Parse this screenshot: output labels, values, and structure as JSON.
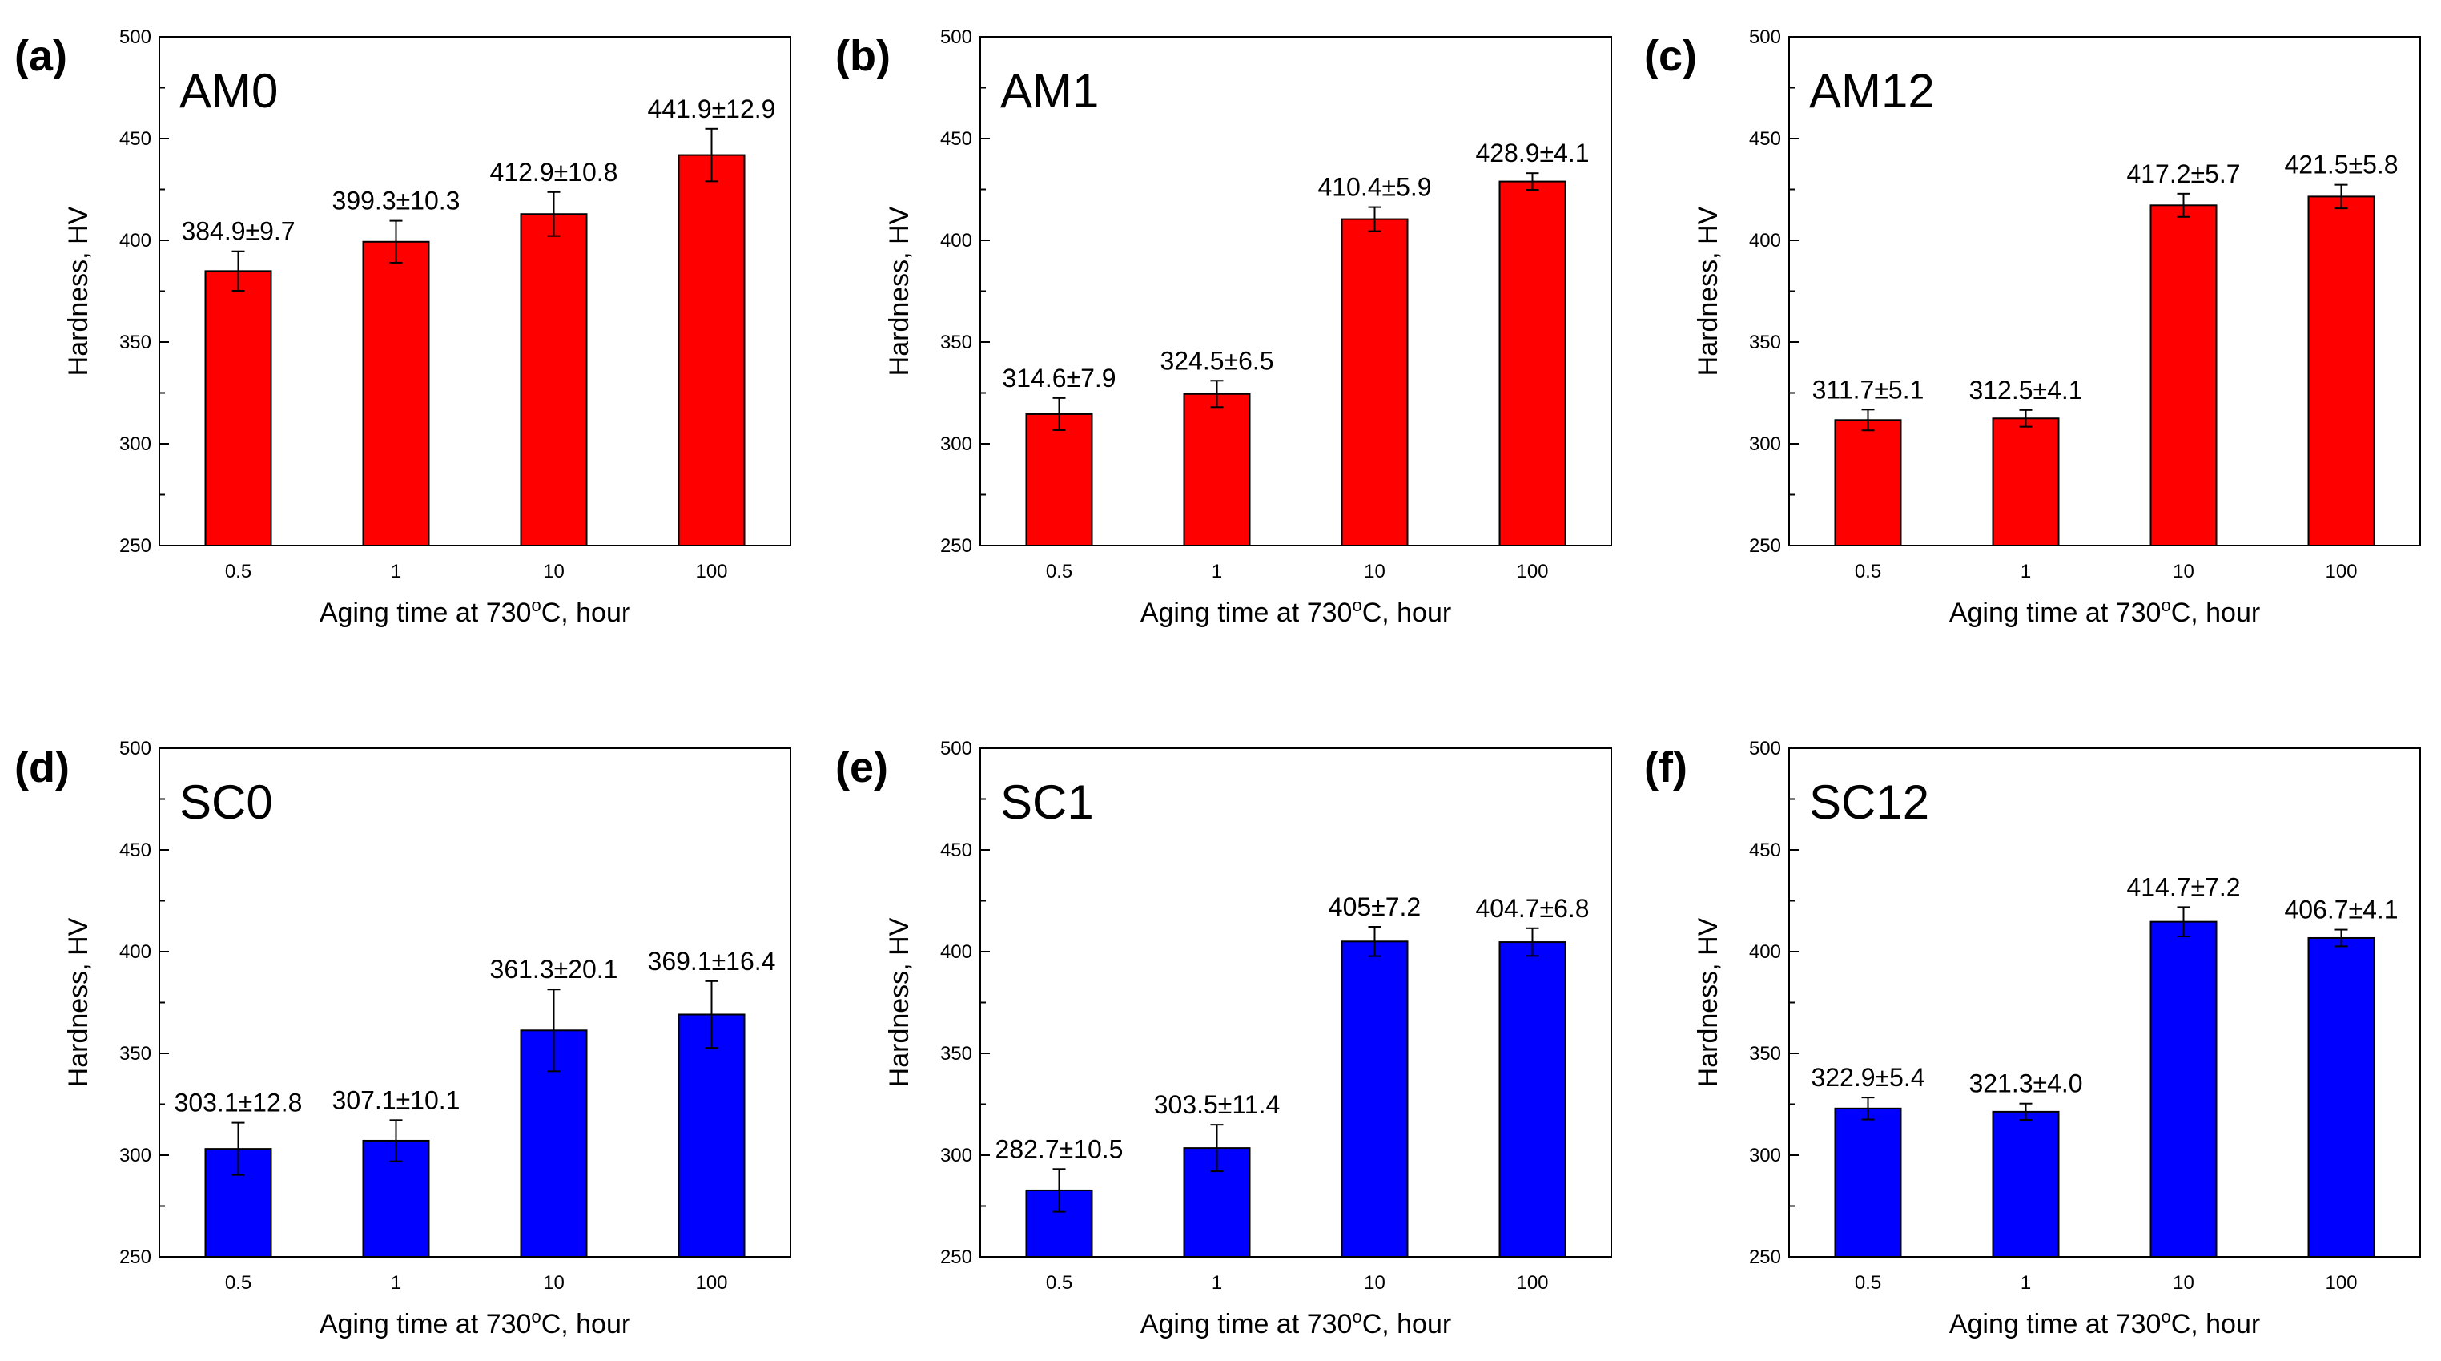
{
  "figure": {
    "xlabel_main": "Aging time at 730",
    "xlabel_sup": "o",
    "xlabel_tail": "C, hour",
    "ylabel": "Hardness, HV"
  },
  "colors": {
    "red": "#ff0000",
    "blue": "#0000ff"
  },
  "chart_data": [
    {
      "type": "bar",
      "panel": "(a)",
      "sample": "AM0",
      "color": "#ff0000",
      "categories": [
        "0.5",
        "1",
        "10",
        "100"
      ],
      "values": [
        384.9,
        399.3,
        412.9,
        441.9
      ],
      "errors": [
        9.7,
        10.3,
        10.8,
        12.9
      ],
      "labels": [
        "384.9±9.7",
        "399.3±10.3",
        "412.9±10.8",
        "441.9±12.9"
      ],
      "ylim": [
        250,
        500
      ],
      "yticks": [
        250,
        300,
        350,
        400,
        450,
        500
      ],
      "xlabel": "Aging time at 730°C, hour",
      "ylabel": "Hardness, HV"
    },
    {
      "type": "bar",
      "panel": "(b)",
      "sample": "AM1",
      "color": "#ff0000",
      "categories": [
        "0.5",
        "1",
        "10",
        "100"
      ],
      "values": [
        314.6,
        324.5,
        410.4,
        428.9
      ],
      "errors": [
        7.9,
        6.5,
        5.9,
        4.1
      ],
      "labels": [
        "314.6±7.9",
        "324.5±6.5",
        "410.4±5.9",
        "428.9±4.1"
      ],
      "ylim": [
        250,
        500
      ],
      "yticks": [
        250,
        300,
        350,
        400,
        450,
        500
      ],
      "xlabel": "Aging time at 730°C, hour",
      "ylabel": "Hardness, HV"
    },
    {
      "type": "bar",
      "panel": "(c)",
      "sample": "AM12",
      "color": "#ff0000",
      "categories": [
        "0.5",
        "1",
        "10",
        "100"
      ],
      "values": [
        311.7,
        312.5,
        417.2,
        421.5
      ],
      "errors": [
        5.1,
        4.1,
        5.7,
        5.8
      ],
      "labels": [
        "311.7±5.1",
        "312.5±4.1",
        "417.2±5.7",
        "421.5±5.8"
      ],
      "ylim": [
        250,
        500
      ],
      "yticks": [
        250,
        300,
        350,
        400,
        450,
        500
      ],
      "xlabel": "Aging time at 730°C, hour",
      "ylabel": "Hardness, HV"
    },
    {
      "type": "bar",
      "panel": "(d)",
      "sample": "SC0",
      "color": "#0000ff",
      "categories": [
        "0.5",
        "1",
        "10",
        "100"
      ],
      "values": [
        303.1,
        307.1,
        361.3,
        369.1
      ],
      "errors": [
        12.8,
        10.1,
        20.1,
        16.4
      ],
      "labels": [
        "303.1±12.8",
        "307.1±10.1",
        "361.3±20.1",
        "369.1±16.4"
      ],
      "ylim": [
        250,
        500
      ],
      "yticks": [
        250,
        300,
        350,
        400,
        450,
        500
      ],
      "xlabel": "Aging time at 730°C, hour",
      "ylabel": "Hardness, HV"
    },
    {
      "type": "bar",
      "panel": "(e)",
      "sample": "SC1",
      "color": "#0000ff",
      "categories": [
        "0.5",
        "1",
        "10",
        "100"
      ],
      "values": [
        282.7,
        303.5,
        405,
        404.7
      ],
      "errors": [
        10.5,
        11.4,
        7.2,
        6.8
      ],
      "labels": [
        "282.7±10.5",
        "303.5±11.4",
        "405±7.2",
        "404.7±6.8"
      ],
      "ylim": [
        250,
        500
      ],
      "yticks": [
        250,
        300,
        350,
        400,
        450,
        500
      ],
      "xlabel": "Aging time at 730°C, hour",
      "ylabel": "Hardness, HV"
    },
    {
      "type": "bar",
      "panel": "(f)",
      "sample": "SC12",
      "color": "#0000ff",
      "categories": [
        "0.5",
        "1",
        "10",
        "100"
      ],
      "values": [
        322.9,
        321.3,
        414.7,
        406.7
      ],
      "errors": [
        5.4,
        4.0,
        7.2,
        4.1
      ],
      "labels": [
        "322.9±5.4",
        "321.3±4.0",
        "414.7±7.2",
        "406.7±4.1"
      ],
      "ylim": [
        250,
        500
      ],
      "yticks": [
        250,
        300,
        350,
        400,
        450,
        500
      ],
      "xlabel": "Aging time at 730°C, hour",
      "ylabel": "Hardness, HV"
    }
  ]
}
